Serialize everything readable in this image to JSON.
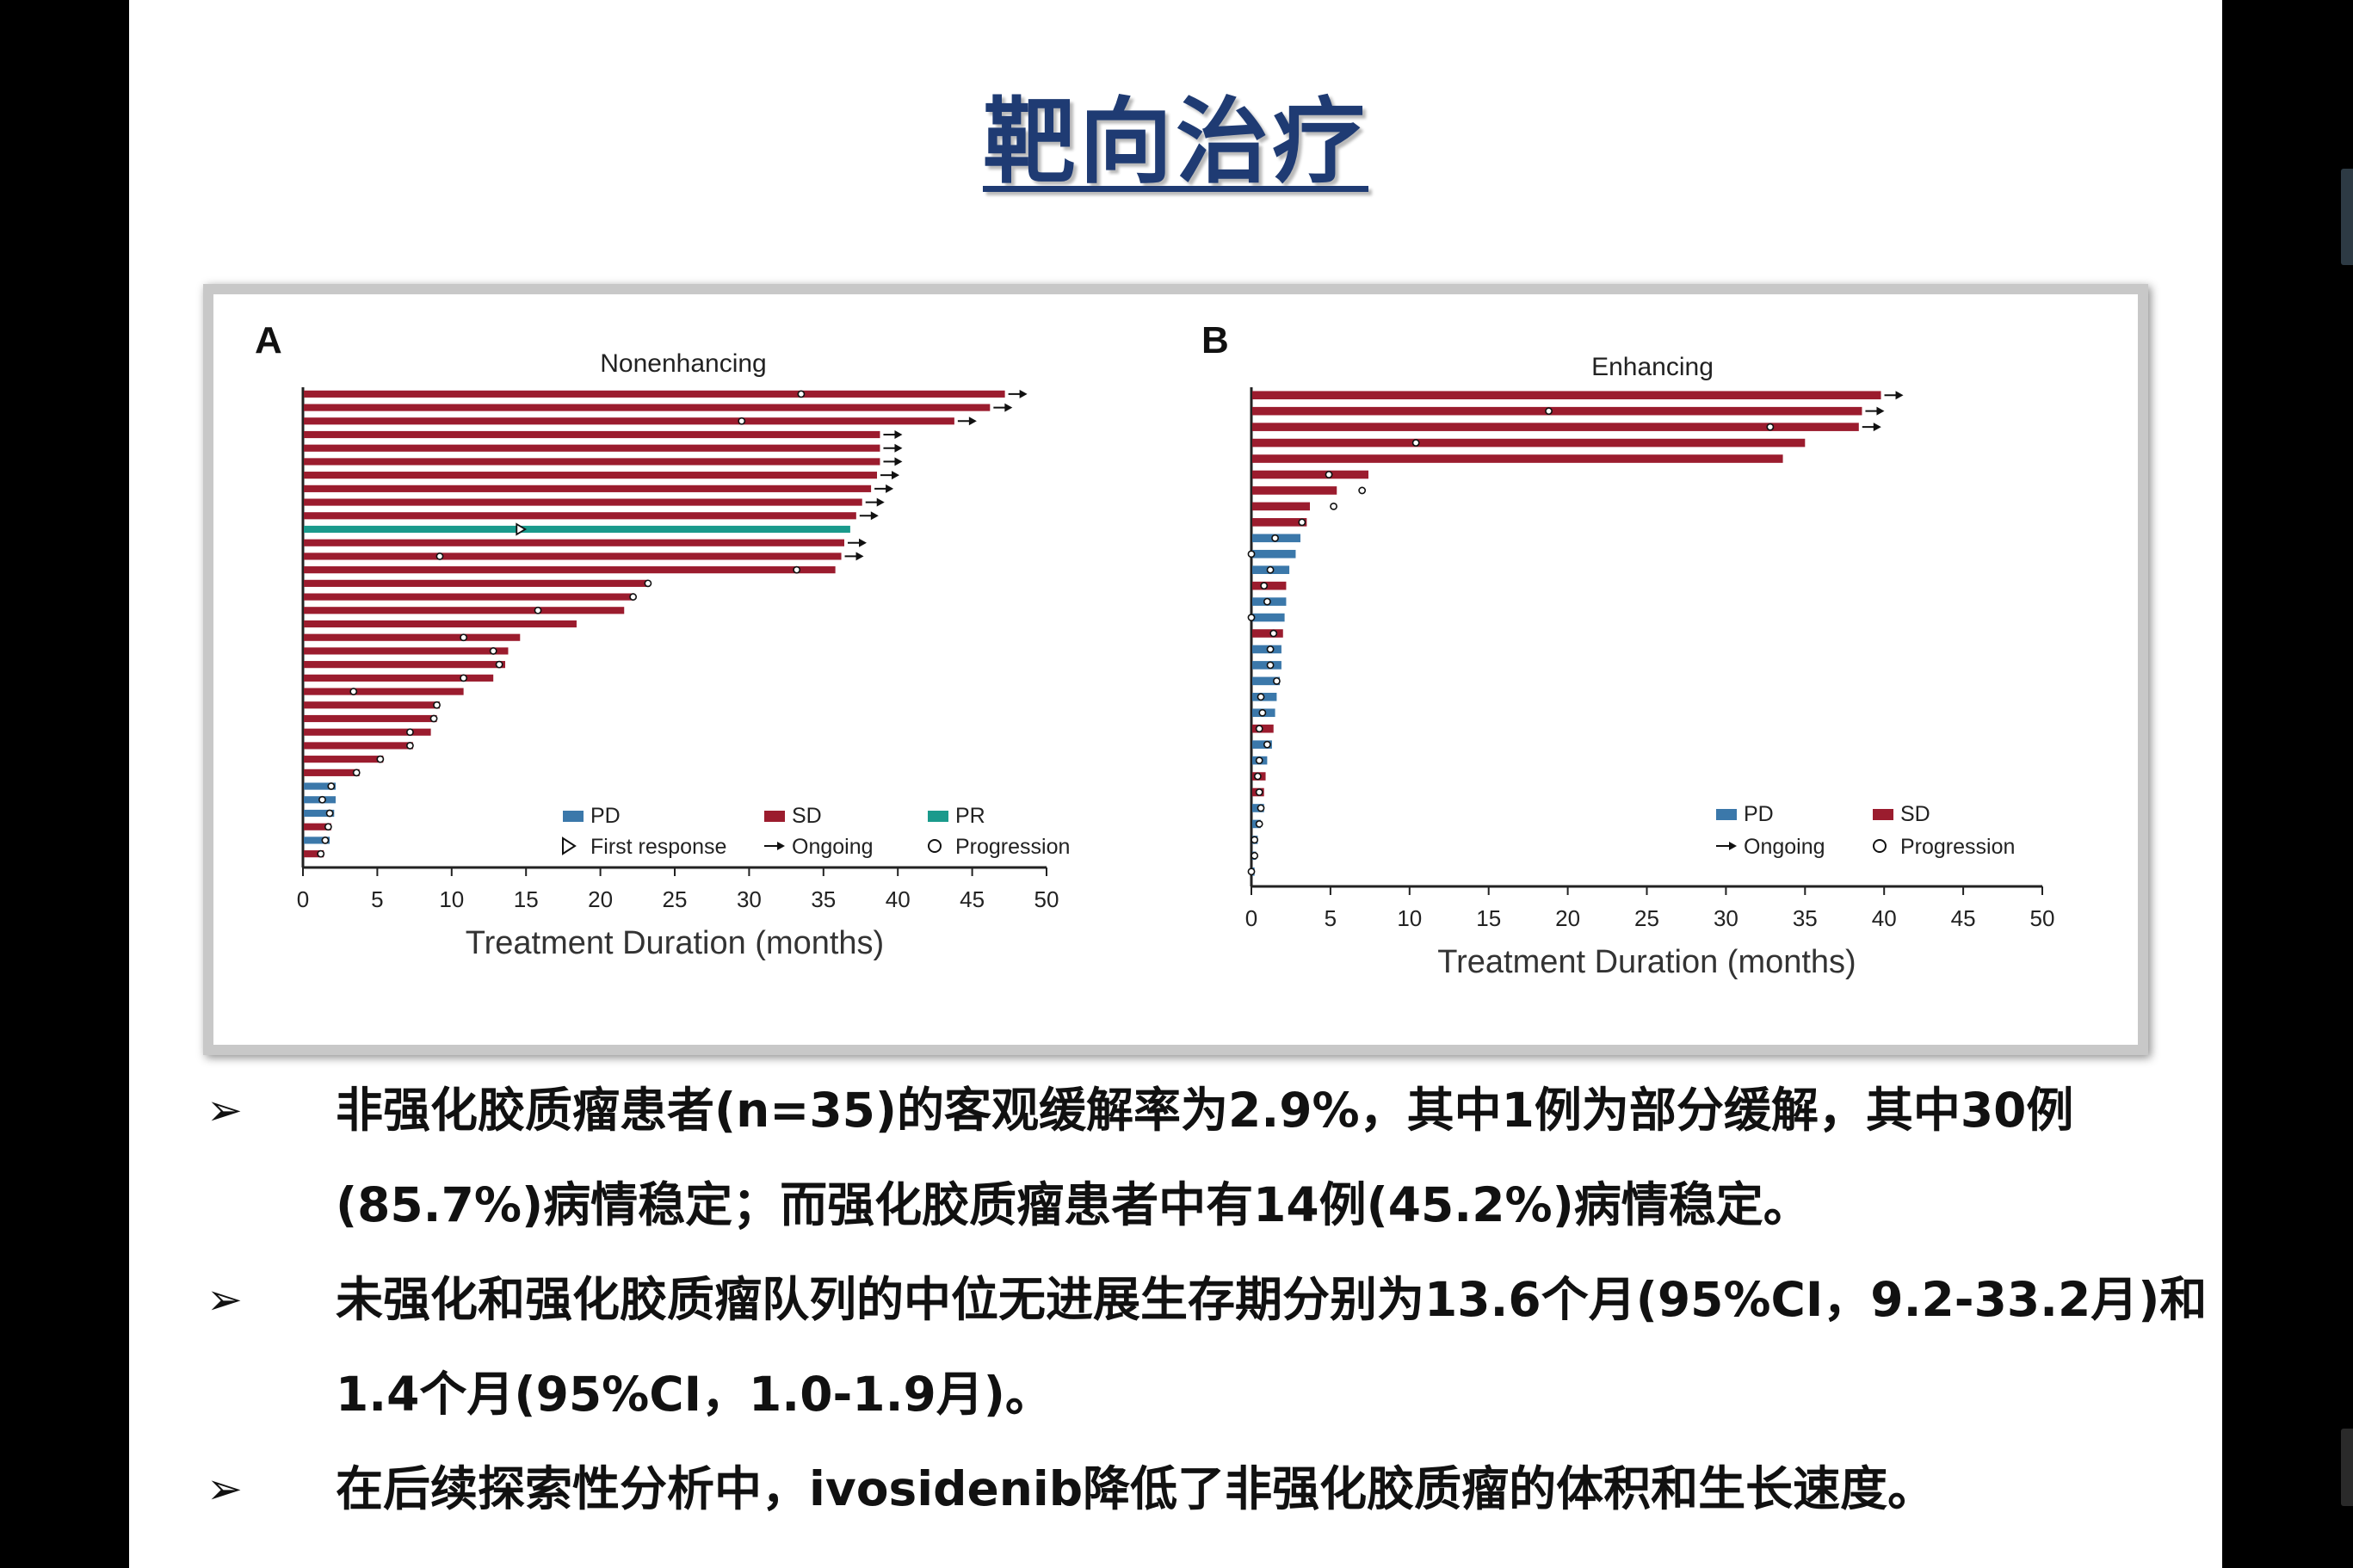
{
  "slide": {
    "title": "靶向治疗",
    "bullet_marker": "➢",
    "bullets": [
      "非强化胶质瘤患者(n=35)的客观缓解率为2.9%，其中1例为部分缓解，其中30例(85.7%)病情稳定；而强化胶质瘤患者中有14例(45.2%)病情稳定。",
      "未强化和强化胶质瘤队列的中位无进展生存期分别为13.6个月(95%CI，9.2-33.2月)和1.4个月(95%CI，1.0-1.9月)。",
      "在后续探索性分析中，ivosidenib降低了非强化胶质瘤的体积和生长速度。"
    ]
  },
  "colors": {
    "PD": "#3b78aa",
    "SD": "#9b1c2e",
    "PR": "#1a9a8c",
    "title": "#1f3b73"
  },
  "chart_data": [
    {
      "type": "bar",
      "orientation": "horizontal",
      "panel": "A",
      "title": "Nonenhancing",
      "xlabel": "Treatment Duration (months)",
      "xlim": [
        0,
        50
      ],
      "xticks": [
        0,
        5,
        10,
        15,
        20,
        25,
        30,
        35,
        40,
        45,
        50
      ],
      "legend": [
        {
          "kind": "PD",
          "label": "PD"
        },
        {
          "kind": "SD",
          "label": "SD"
        },
        {
          "kind": "PR",
          "label": "PR"
        },
        {
          "kind": "first-response",
          "label": "First response"
        },
        {
          "kind": "ongoing",
          "label": "Ongoing"
        },
        {
          "kind": "progression",
          "label": "Progression"
        }
      ],
      "legend_position": "bottom-right",
      "bars": [
        {
          "value": 47.2,
          "response": "SD",
          "ongoing": true,
          "progression": 33.5
        },
        {
          "value": 46.2,
          "response": "SD",
          "ongoing": true,
          "progression": null
        },
        {
          "value": 43.8,
          "response": "SD",
          "ongoing": true,
          "progression": 29.5
        },
        {
          "value": 38.8,
          "response": "SD",
          "ongoing": true,
          "progression": null
        },
        {
          "value": 38.8,
          "response": "SD",
          "ongoing": true,
          "progression": null
        },
        {
          "value": 38.8,
          "response": "SD",
          "ongoing": true,
          "progression": null
        },
        {
          "value": 38.6,
          "response": "SD",
          "ongoing": true,
          "progression": null
        },
        {
          "value": 38.2,
          "response": "SD",
          "ongoing": true,
          "progression": null
        },
        {
          "value": 37.6,
          "response": "SD",
          "ongoing": true,
          "progression": null
        },
        {
          "value": 37.2,
          "response": "SD",
          "ongoing": true,
          "progression": null
        },
        {
          "value": 36.8,
          "response": "PR",
          "ongoing": false,
          "progression": null,
          "first_response": 14.6
        },
        {
          "value": 36.4,
          "response": "SD",
          "ongoing": true,
          "progression": null
        },
        {
          "value": 36.2,
          "response": "SD",
          "ongoing": true,
          "progression": 9.2
        },
        {
          "value": 35.8,
          "response": "SD",
          "ongoing": false,
          "progression": 33.2
        },
        {
          "value": 23.2,
          "response": "SD",
          "ongoing": false,
          "progression": 23.2
        },
        {
          "value": 22.2,
          "response": "SD",
          "ongoing": false,
          "progression": 22.2
        },
        {
          "value": 21.6,
          "response": "SD",
          "ongoing": false,
          "progression": 15.8
        },
        {
          "value": 18.4,
          "response": "SD",
          "ongoing": false,
          "progression": null
        },
        {
          "value": 14.6,
          "response": "SD",
          "ongoing": false,
          "progression": 10.8
        },
        {
          "value": 13.8,
          "response": "SD",
          "ongoing": false,
          "progression": 12.8
        },
        {
          "value": 13.6,
          "response": "SD",
          "ongoing": false,
          "progression": 13.2
        },
        {
          "value": 12.8,
          "response": "SD",
          "ongoing": false,
          "progression": 10.8
        },
        {
          "value": 10.8,
          "response": "SD",
          "ongoing": false,
          "progression": 3.4
        },
        {
          "value": 9.2,
          "response": "SD",
          "ongoing": false,
          "progression": 9.0
        },
        {
          "value": 9.0,
          "response": "SD",
          "ongoing": false,
          "progression": 8.8
        },
        {
          "value": 8.6,
          "response": "SD",
          "ongoing": false,
          "progression": 7.2
        },
        {
          "value": 7.4,
          "response": "SD",
          "ongoing": false,
          "progression": 7.2
        },
        {
          "value": 5.4,
          "response": "SD",
          "ongoing": false,
          "progression": 5.2
        },
        {
          "value": 3.8,
          "response": "SD",
          "ongoing": false,
          "progression": 3.6
        },
        {
          "value": 2.2,
          "response": "PD",
          "ongoing": false,
          "progression": 1.9
        },
        {
          "value": 2.2,
          "response": "PD",
          "ongoing": false,
          "progression": 1.3
        },
        {
          "value": 2.1,
          "response": "PD",
          "ongoing": false,
          "progression": 1.8
        },
        {
          "value": 1.9,
          "response": "SD",
          "ongoing": false,
          "progression": 1.7
        },
        {
          "value": 1.8,
          "response": "PD",
          "ongoing": false,
          "progression": 1.5
        },
        {
          "value": 1.4,
          "response": "SD",
          "ongoing": false,
          "progression": 1.2
        }
      ]
    },
    {
      "type": "bar",
      "orientation": "horizontal",
      "panel": "B",
      "title": "Enhancing",
      "xlabel": "Treatment Duration (months)",
      "xlim": [
        0,
        50
      ],
      "xticks": [
        0,
        5,
        10,
        15,
        20,
        25,
        30,
        35,
        40,
        45,
        50
      ],
      "legend": [
        {
          "kind": "PD",
          "label": "PD"
        },
        {
          "kind": "SD",
          "label": "SD"
        },
        {
          "kind": "ongoing",
          "label": "Ongoing"
        },
        {
          "kind": "progression",
          "label": "Progression"
        }
      ],
      "legend_position": "bottom-right",
      "bars": [
        {
          "value": 39.8,
          "response": "SD",
          "ongoing": true,
          "progression": null
        },
        {
          "value": 38.6,
          "response": "SD",
          "ongoing": true,
          "progression": 18.8
        },
        {
          "value": 38.4,
          "response": "SD",
          "ongoing": true,
          "progression": 32.8
        },
        {
          "value": 35.0,
          "response": "SD",
          "ongoing": false,
          "progression": 10.4
        },
        {
          "value": 33.6,
          "response": "SD",
          "ongoing": false,
          "progression": null
        },
        {
          "value": 7.4,
          "response": "SD",
          "ongoing": false,
          "progression": 4.9
        },
        {
          "value": 5.4,
          "response": "SD",
          "ongoing": false,
          "progression": 7.0
        },
        {
          "value": 3.7,
          "response": "SD",
          "ongoing": false,
          "progression": 5.2
        },
        {
          "value": 3.5,
          "response": "SD",
          "ongoing": false,
          "progression": 3.2
        },
        {
          "value": 3.1,
          "response": "PD",
          "ongoing": false,
          "progression": 1.5
        },
        {
          "value": 2.8,
          "response": "PD",
          "ongoing": false,
          "progression": 0
        },
        {
          "value": 2.4,
          "response": "PD",
          "ongoing": false,
          "progression": 1.2
        },
        {
          "value": 2.2,
          "response": "SD",
          "ongoing": false,
          "progression": 0.8
        },
        {
          "value": 2.2,
          "response": "PD",
          "ongoing": false,
          "progression": 1.0
        },
        {
          "value": 2.1,
          "response": "PD",
          "ongoing": false,
          "progression": 0
        },
        {
          "value": 2.0,
          "response": "SD",
          "ongoing": false,
          "progression": 1.4
        },
        {
          "value": 1.9,
          "response": "PD",
          "ongoing": false,
          "progression": 1.2
        },
        {
          "value": 1.9,
          "response": "PD",
          "ongoing": false,
          "progression": 1.2
        },
        {
          "value": 1.8,
          "response": "PD",
          "ongoing": false,
          "progression": 1.6
        },
        {
          "value": 1.6,
          "response": "PD",
          "ongoing": false,
          "progression": 0.6
        },
        {
          "value": 1.5,
          "response": "PD",
          "ongoing": false,
          "progression": 0.7
        },
        {
          "value": 1.4,
          "response": "SD",
          "ongoing": false,
          "progression": 0.5
        },
        {
          "value": 1.3,
          "response": "PD",
          "ongoing": false,
          "progression": 1.0
        },
        {
          "value": 1.0,
          "response": "PD",
          "ongoing": false,
          "progression": 0.5
        },
        {
          "value": 0.9,
          "response": "SD",
          "ongoing": false,
          "progression": 0.4
        },
        {
          "value": 0.8,
          "response": "SD",
          "ongoing": false,
          "progression": 0.5
        },
        {
          "value": 0.8,
          "response": "PD",
          "ongoing": false,
          "progression": 0.6
        },
        {
          "value": 0.6,
          "response": "PD",
          "ongoing": false,
          "progression": 0.5
        },
        {
          "value": 0.4,
          "response": "PD",
          "ongoing": false,
          "progression": 0.2
        },
        {
          "value": 0.3,
          "response": "PD",
          "ongoing": false,
          "progression": 0.2
        },
        {
          "value": 0.2,
          "response": "PD",
          "ongoing": false,
          "progression": 0
        }
      ]
    }
  ]
}
